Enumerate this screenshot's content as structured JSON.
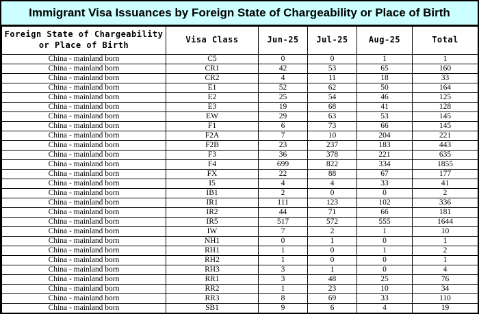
{
  "title": "Immigrant Visa Issuances by Foreign State of Chargeability or Place of Birth",
  "colors": {
    "title_background": "#ccffff",
    "border": "#000000",
    "text": "#000000",
    "table_background": "#ffffff"
  },
  "table": {
    "headers": [
      "Foreign State of Chargeability\nor Place of Birth",
      "Visa Class",
      "Jun-25",
      "Jul-25",
      "Aug-25",
      "Total"
    ],
    "rows": [
      [
        "China - mainland born",
        "C5",
        "0",
        "0",
        "1",
        "1"
      ],
      [
        "China - mainland born",
        "CR1",
        "42",
        "53",
        "65",
        "160"
      ],
      [
        "China - mainland born",
        "CR2",
        "4",
        "11",
        "18",
        "33"
      ],
      [
        "China - mainland born",
        "E1",
        "52",
        "62",
        "50",
        "164"
      ],
      [
        "China - mainland born",
        "E2",
        "25",
        "54",
        "46",
        "125"
      ],
      [
        "China - mainland born",
        "E3",
        "19",
        "68",
        "41",
        "128"
      ],
      [
        "China - mainland born",
        "EW",
        "29",
        "63",
        "53",
        "145"
      ],
      [
        "China - mainland born",
        "F1",
        "6",
        "73",
        "66",
        "145"
      ],
      [
        "China - mainland born",
        "F2A",
        "7",
        "10",
        "204",
        "221"
      ],
      [
        "China - mainland born",
        "F2B",
        "23",
        "237",
        "183",
        "443"
      ],
      [
        "China - mainland born",
        "F3",
        "36",
        "378",
        "221",
        "635"
      ],
      [
        "China - mainland born",
        "F4",
        "699",
        "822",
        "334",
        "1855"
      ],
      [
        "China - mainland born",
        "FX",
        "22",
        "88",
        "67",
        "177"
      ],
      [
        "China - mainland born",
        "I5",
        "4",
        "4",
        "33",
        "41"
      ],
      [
        "China - mainland born",
        "IB1",
        "2",
        "0",
        "0",
        "2"
      ],
      [
        "China - mainland born",
        "IR1",
        "111",
        "123",
        "102",
        "336"
      ],
      [
        "China - mainland born",
        "IR2",
        "44",
        "71",
        "66",
        "181"
      ],
      [
        "China - mainland born",
        "IR5",
        "517",
        "572",
        "555",
        "1644"
      ],
      [
        "China - mainland born",
        "IW",
        "7",
        "2",
        "1",
        "10"
      ],
      [
        "China - mainland born",
        "NH1",
        "0",
        "1",
        "0",
        "1"
      ],
      [
        "China - mainland born",
        "RH1",
        "1",
        "0",
        "1",
        "2"
      ],
      [
        "China - mainland born",
        "RH2",
        "1",
        "0",
        "0",
        "1"
      ],
      [
        "China - mainland born",
        "RH3",
        "3",
        "1",
        "0",
        "4"
      ],
      [
        "China - mainland born",
        "RR1",
        "3",
        "48",
        "25",
        "76"
      ],
      [
        "China - mainland born",
        "RR2",
        "1",
        "23",
        "10",
        "34"
      ],
      [
        "China - mainland born",
        "RR3",
        "8",
        "69",
        "33",
        "110"
      ],
      [
        "China - mainland born",
        "SB1",
        "9",
        "6",
        "4",
        "19"
      ]
    ]
  }
}
